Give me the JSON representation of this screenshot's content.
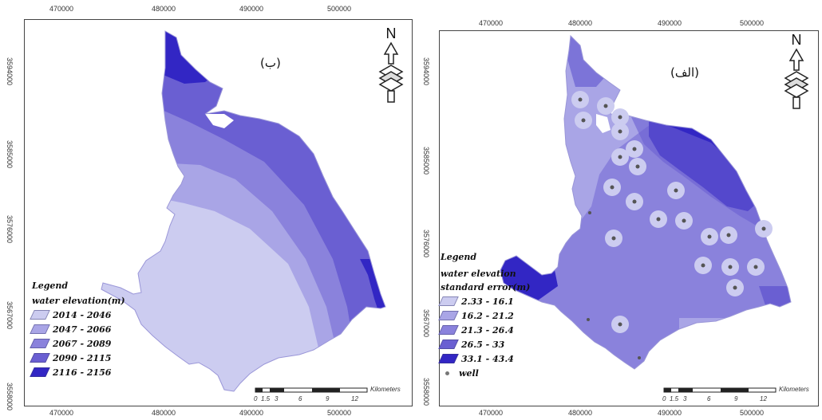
{
  "colors": {
    "class1": "#ccccf0",
    "class2": "#a9a5e6",
    "class3": "#8a82dc",
    "class4": "#6a5fd2",
    "class5": "#3226c4",
    "well_dot": "#777777",
    "frame": "#444444"
  },
  "left_panel": {
    "label": "(ب)",
    "x_ticks": [
      "470000",
      "480000",
      "490000",
      "500000"
    ],
    "y_ticks": [
      "3594000",
      "3585000",
      "3576000",
      "3567000",
      "3558000"
    ],
    "legend": {
      "title": "Legend",
      "subtitle": "water elevation(m)",
      "classes": [
        "2014 - 2046",
        "2047 - 2066",
        "2067 - 2089",
        "2090 - 2115",
        "2116 - 2156"
      ]
    },
    "scale": {
      "ticks": [
        "0",
        "1.5",
        "3",
        "6",
        "9",
        "12"
      ],
      "unit": "Kilometers"
    },
    "north": "N"
  },
  "right_panel": {
    "label": "(الف)",
    "x_ticks": [
      "470000",
      "480000",
      "490000",
      "500000"
    ],
    "y_ticks": [
      "3594000",
      "3585000",
      "3576000",
      "3567000",
      "3558000"
    ],
    "legend": {
      "title": "Legend",
      "subtitle_line1": "water elevation",
      "subtitle_line2": "standard error(m)",
      "classes": [
        "2.33 - 16.1",
        "16.2 - 21.2",
        "21.3 - 26.4",
        "26.5 - 33",
        "33.1 - 43.4"
      ],
      "well_label": "well"
    },
    "scale": {
      "ticks": [
        "0",
        "1.5",
        "3",
        "6",
        "9",
        "12"
      ],
      "unit": "Kilometers"
    },
    "north": "N"
  }
}
